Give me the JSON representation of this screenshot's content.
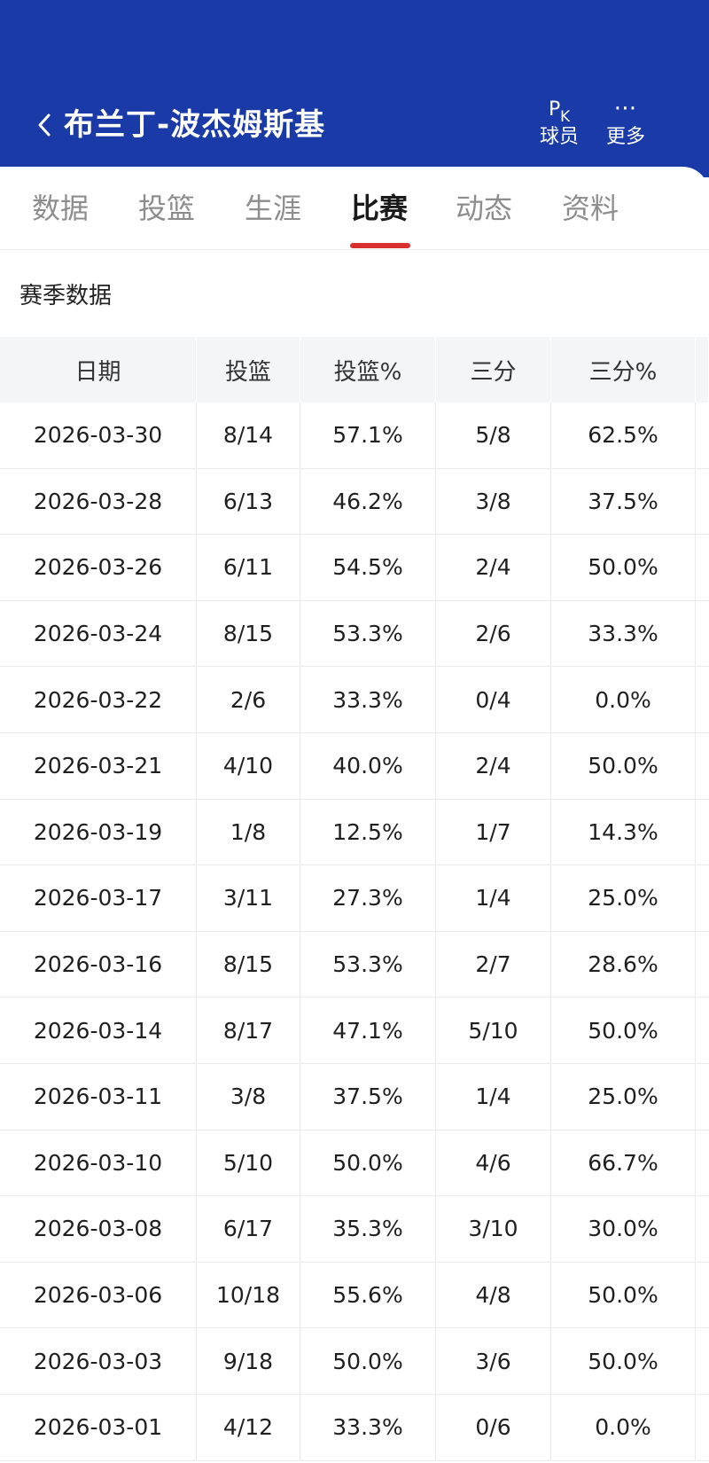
{
  "header": {
    "player_name": "布兰丁-波杰姆斯基",
    "actions": {
      "pk": {
        "icon_text_p": "P",
        "icon_text_k": "K",
        "label": "球员"
      },
      "more": {
        "icon": "⋯",
        "label": "更多"
      }
    },
    "colors": {
      "background": "#1a3ba7",
      "accent": "#d9302f"
    }
  },
  "tabs": [
    {
      "label": "数据"
    },
    {
      "label": "投篮"
    },
    {
      "label": "生涯"
    },
    {
      "label": "比赛",
      "active": true
    },
    {
      "label": "动态"
    },
    {
      "label": "资料"
    }
  ],
  "section_title": "赛季数据",
  "table": {
    "columns": [
      "日期",
      "投篮",
      "投篮%",
      "三分",
      "三分%"
    ],
    "rows": [
      [
        "2026-03-30",
        "8/14",
        "57.1%",
        "5/8",
        "62.5%"
      ],
      [
        "2026-03-28",
        "6/13",
        "46.2%",
        "3/8",
        "37.5%"
      ],
      [
        "2026-03-26",
        "6/11",
        "54.5%",
        "2/4",
        "50.0%"
      ],
      [
        "2026-03-24",
        "8/15",
        "53.3%",
        "2/6",
        "33.3%"
      ],
      [
        "2026-03-22",
        "2/6",
        "33.3%",
        "0/4",
        "0.0%"
      ],
      [
        "2026-03-21",
        "4/10",
        "40.0%",
        "2/4",
        "50.0%"
      ],
      [
        "2026-03-19",
        "1/8",
        "12.5%",
        "1/7",
        "14.3%"
      ],
      [
        "2026-03-17",
        "3/11",
        "27.3%",
        "1/4",
        "25.0%"
      ],
      [
        "2026-03-16",
        "8/15",
        "53.3%",
        "2/7",
        "28.6%"
      ],
      [
        "2026-03-14",
        "8/17",
        "47.1%",
        "5/10",
        "50.0%"
      ],
      [
        "2026-03-11",
        "3/8",
        "37.5%",
        "1/4",
        "25.0%"
      ],
      [
        "2026-03-10",
        "5/10",
        "50.0%",
        "4/6",
        "66.7%"
      ],
      [
        "2026-03-08",
        "6/17",
        "35.3%",
        "3/10",
        "30.0%"
      ],
      [
        "2026-03-06",
        "10/18",
        "55.6%",
        "4/8",
        "50.0%"
      ],
      [
        "2026-03-03",
        "9/18",
        "50.0%",
        "3/6",
        "50.0%"
      ],
      [
        "2026-03-01",
        "4/12",
        "33.3%",
        "0/6",
        "0.0%"
      ]
    ]
  }
}
